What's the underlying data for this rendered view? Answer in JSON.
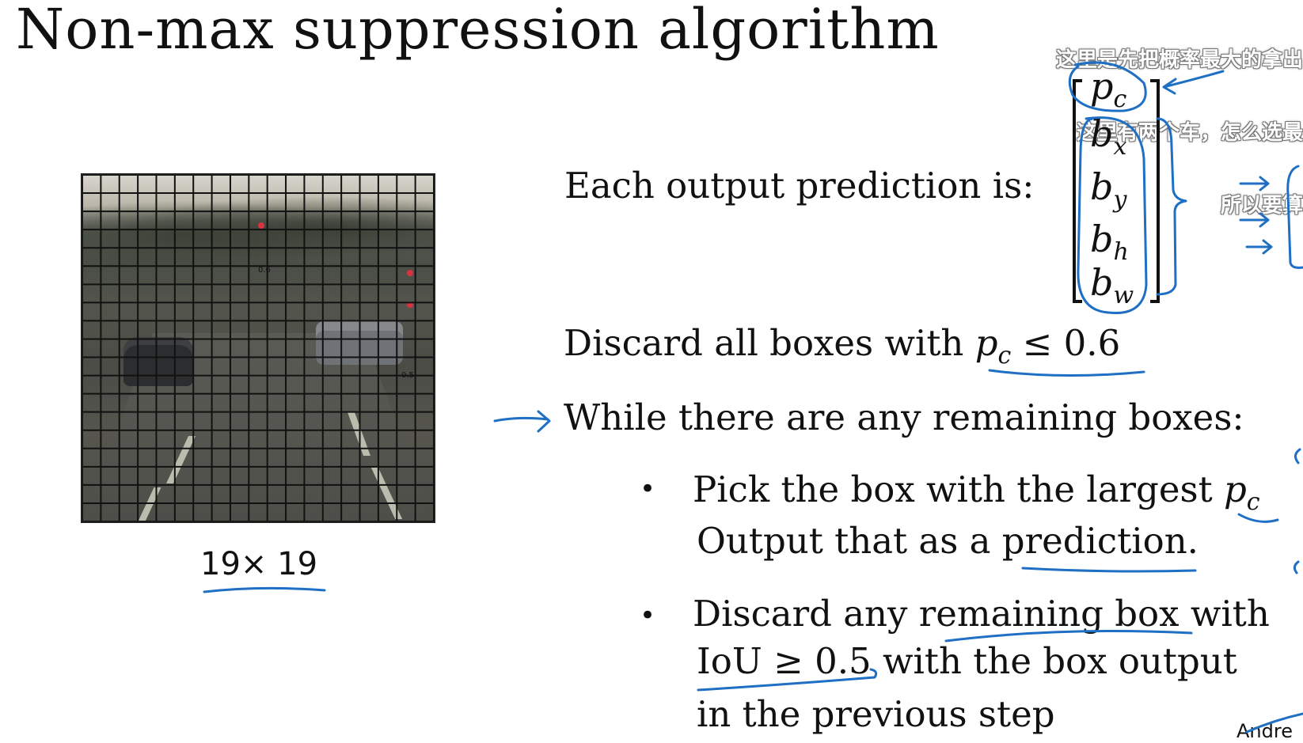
{
  "slide": {
    "title": "Non-max suppression algorithm",
    "subtitle_lines": [
      "这里是先把概率最大的拿出",
      "这里有两个车，怎么选最",
      "所以要算"
    ]
  },
  "figure": {
    "grid_label": "19× 19",
    "grid_rows": 19,
    "grid_cols": 19,
    "prob_labels": [
      "0.6",
      "0.5"
    ]
  },
  "text": {
    "each_prediction": "Each output prediction is:",
    "discard_prefix": "Discard all boxes with ",
    "discard_var": "p",
    "discard_sub": "c",
    "discard_suffix": " ≤ 0.6",
    "while_line": "While there are any remaining boxes:",
    "bullet_symbol": "•",
    "bullet1_prefix": "Pick the box with the largest ",
    "bullet1_var": "p",
    "bullet1_sub": "c",
    "bullet1_line2": "Output that as a prediction.",
    "bullet2_line1": "Discard any remaining box with",
    "bullet2_line2": "IoU ≥ 0.5 with the box output",
    "bullet2_line3": "in the previous step"
  },
  "vector": {
    "items": [
      {
        "var": "p",
        "sub": "c"
      },
      {
        "var": "b",
        "sub": "x"
      },
      {
        "var": "b",
        "sub": "y"
      },
      {
        "var": "b",
        "sub": "h"
      },
      {
        "var": "b",
        "sub": "w"
      }
    ]
  },
  "credit": "Andre",
  "colors": {
    "annotation_ink": "#1f6fc4",
    "text": "#111111",
    "background": "#ffffff"
  }
}
